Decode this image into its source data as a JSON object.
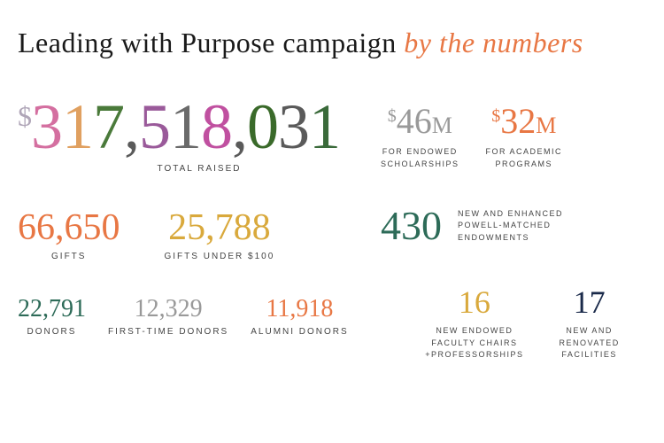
{
  "title": {
    "main": "Leading with Purpose campaign ",
    "accent": "by the numbers"
  },
  "total": {
    "currency": "$",
    "digits": [
      "3",
      "1",
      "7",
      "5",
      "1",
      "8",
      "0",
      "3",
      "1"
    ],
    "digit_colors": [
      "#d46fa0",
      "#e0a060",
      "#4a7a3a",
      "#9a5a9a",
      "#6a6a6a",
      "#c050a0",
      "#3a6a2a",
      "#5a5a5a",
      "#3a6a3a"
    ],
    "label": "TOTAL RAISED"
  },
  "left_mid": {
    "gifts": {
      "value": "66,650",
      "label": "GIFTS",
      "color": "#e87744"
    },
    "gifts_under": {
      "value": "25,788",
      "label": "GIFTS UNDER $100",
      "color": "#d9a93c"
    }
  },
  "left_bottom": {
    "donors": {
      "value": "22,791",
      "label": "DONORS",
      "color": "#2d6b58"
    },
    "first_time": {
      "value": "12,329",
      "label": "FIRST-TIME DONORS",
      "color": "#999999"
    },
    "alumni": {
      "value": "11,918",
      "label": "ALUMNI DONORS",
      "color": "#e87744"
    }
  },
  "right_top": {
    "scholarships": {
      "currency": "$",
      "value": "46",
      "units": "M",
      "label_l1": "FOR ENDOWED",
      "label_l2": "SCHOLARSHIPS",
      "color": "#999999"
    },
    "academic": {
      "currency": "$",
      "value": "32",
      "units": "M",
      "label_l1": "FOR ACADEMIC",
      "label_l2": "PROGRAMS",
      "color": "#e87744"
    }
  },
  "right_mid": {
    "endowments": {
      "value": "430",
      "label_l1": "NEW AND ENHANCED",
      "label_l2": "POWELL-MATCHED",
      "label_l3": "ENDOWMENTS",
      "color": "#2d6b58"
    }
  },
  "right_bottom": {
    "chairs": {
      "value": "16",
      "label_l1": "NEW ENDOWED",
      "label_l2": "FACULTY CHAIRS",
      "label_l3": "+PROFESSORSHIPS",
      "color": "#d9a93c"
    },
    "facilities": {
      "value": "17",
      "label_l1": "NEW AND",
      "label_l2": "RENOVATED",
      "label_l3": "FACILITIES",
      "color": "#1a2a4a"
    }
  },
  "typography": {
    "title_fontsize": 32,
    "total_fontsize": 72,
    "stat_big_fontsize": 42,
    "stat_med_fontsize": 28,
    "label_fontsize": 10,
    "label_letterspacing": 2
  },
  "background_color": "#ffffff"
}
